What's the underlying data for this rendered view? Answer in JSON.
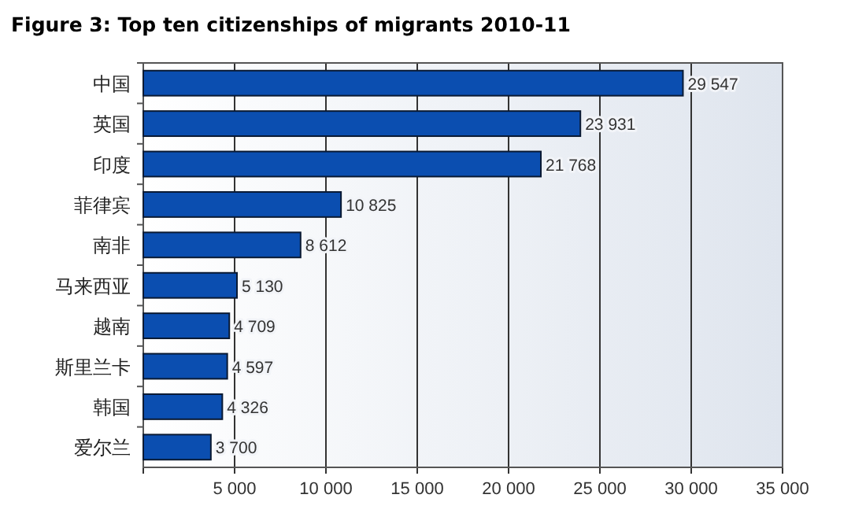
{
  "chart_data": {
    "type": "bar",
    "orientation": "horizontal",
    "title": "Figure 3: Top ten citizenships of migrants 2010-11",
    "categories": [
      "中国",
      "英国",
      "印度",
      "菲律宾",
      "南非",
      "马来西亚",
      "越南",
      "斯里兰卡",
      "韩国",
      "爱尔兰"
    ],
    "values": [
      29547,
      23931,
      21768,
      10825,
      8612,
      5130,
      4709,
      4597,
      4326,
      3700
    ],
    "value_labels": [
      "29 547",
      "23 931",
      "21 768",
      "10 825",
      "8 612",
      "5 130",
      "4 709",
      "4 597",
      "4 326",
      "3 700"
    ],
    "color": "#0b4eb0",
    "xlim": [
      0,
      35000
    ],
    "xticks": [
      {
        "value": 0,
        "label": null
      },
      {
        "value": 5000,
        "label": "5 000"
      },
      {
        "value": 10000,
        "label": "10 000"
      },
      {
        "value": 15000,
        "label": "15 000"
      },
      {
        "value": 20000,
        "label": "20 000"
      },
      {
        "value": 25000,
        "label": "25 000"
      },
      {
        "value": 30000,
        "label": "30 000"
      },
      {
        "value": 35000,
        "label": "35 000"
      }
    ],
    "grid": "x"
  }
}
